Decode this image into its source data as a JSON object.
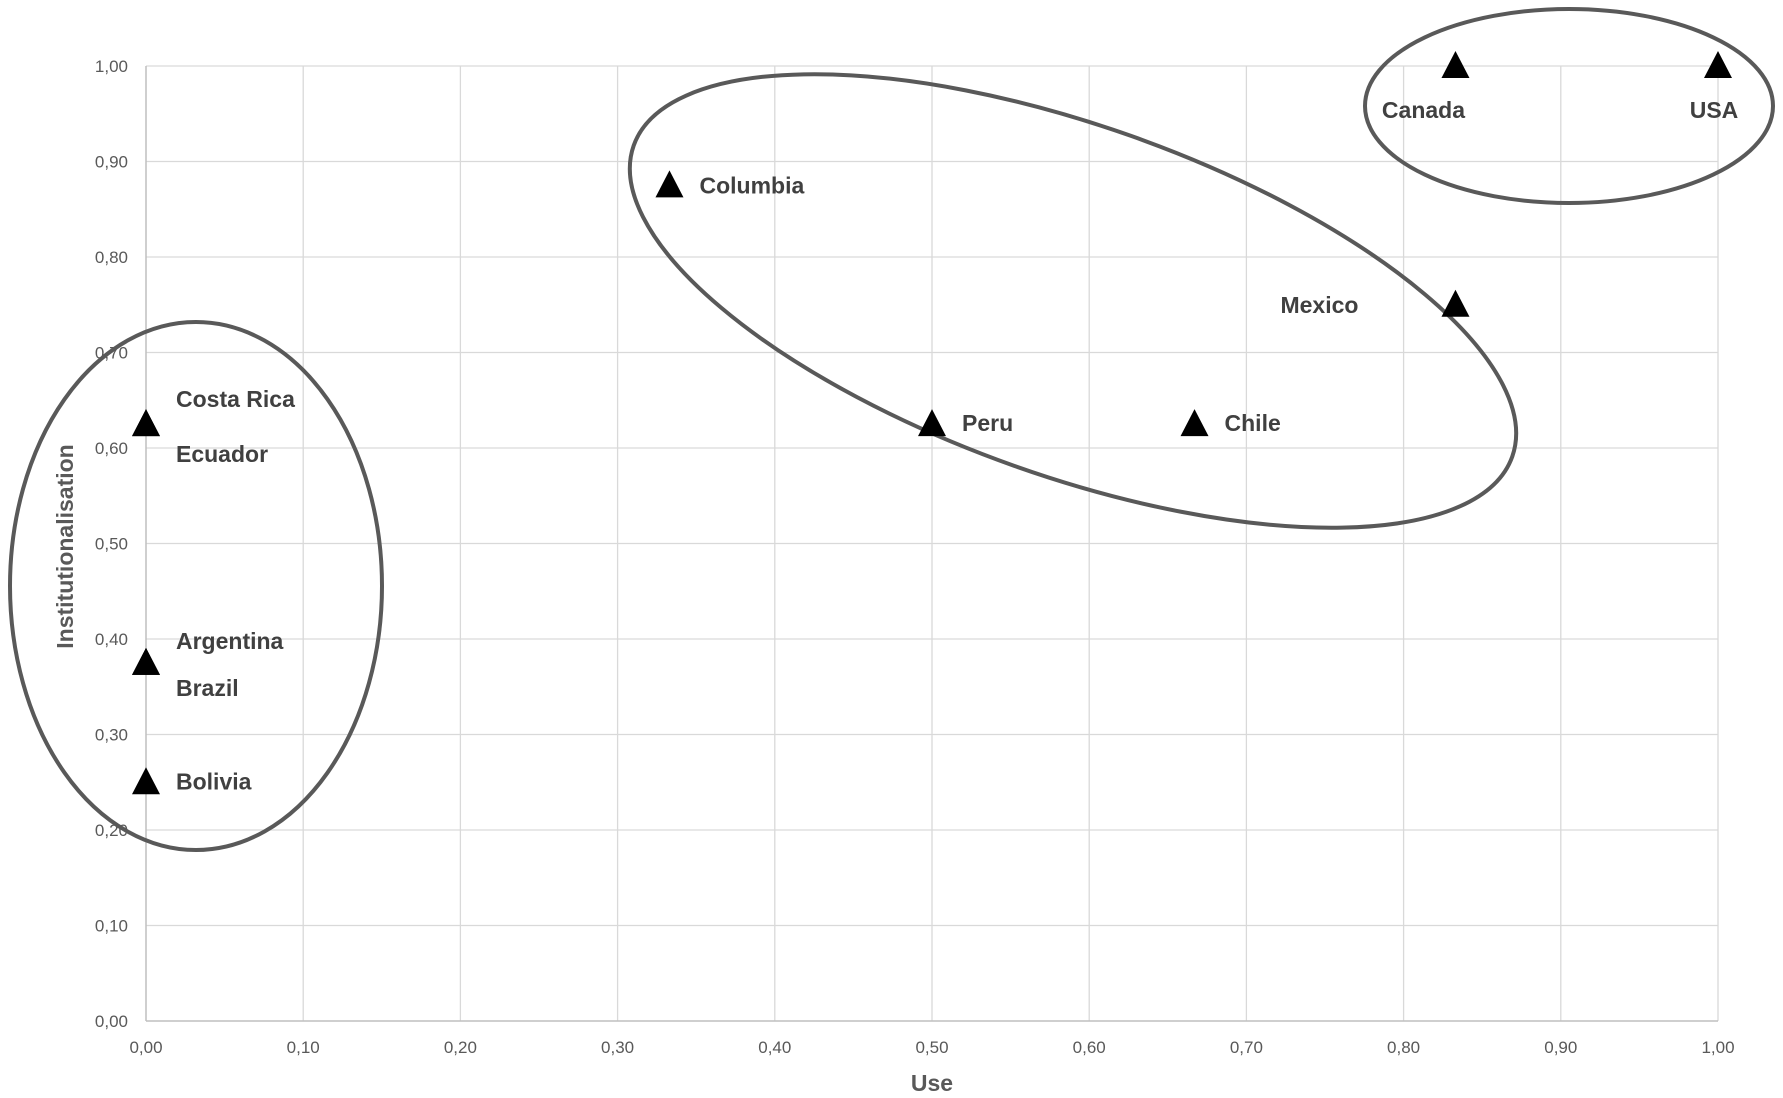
{
  "chart_data": {
    "type": "scatter",
    "xlabel": "Use",
    "ylabel": "Institutionalisation",
    "xlim": [
      0,
      1
    ],
    "ylim": [
      0,
      1
    ],
    "xticks": [
      "0,00",
      "0,10",
      "0,20",
      "0,30",
      "0,40",
      "0,50",
      "0,60",
      "0,70",
      "0,80",
      "0,90",
      "1,00"
    ],
    "yticks": [
      "0,00",
      "0,10",
      "0,20",
      "0,30",
      "0,40",
      "0,50",
      "0,60",
      "0,70",
      "0,80",
      "0,90",
      "1,00"
    ],
    "grid": true,
    "marker": "triangle",
    "points": [
      {
        "label": "Costa Rica",
        "x": 0.0,
        "y": 0.625
      },
      {
        "label": "Ecuador",
        "x": 0.0,
        "y": 0.625
      },
      {
        "label": "Argentina",
        "x": 0.0,
        "y": 0.375
      },
      {
        "label": "Brazil",
        "x": 0.0,
        "y": 0.375
      },
      {
        "label": "Bolivia",
        "x": 0.0,
        "y": 0.25
      },
      {
        "label": "Columbia",
        "x": 0.333,
        "y": 0.875
      },
      {
        "label": "Peru",
        "x": 0.5,
        "y": 0.625
      },
      {
        "label": "Chile",
        "x": 0.667,
        "y": 0.625
      },
      {
        "label": "Mexico",
        "x": 0.833,
        "y": 0.75
      },
      {
        "label": "Canada",
        "x": 0.833,
        "y": 1.0
      },
      {
        "label": "USA",
        "x": 1.0,
        "y": 1.0
      }
    ],
    "clusters": [
      {
        "members": [
          "Costa Rica",
          "Ecuador",
          "Argentina",
          "Brazil",
          "Bolivia"
        ]
      },
      {
        "members": [
          "Columbia",
          "Peru",
          "Chile",
          "Mexico"
        ]
      },
      {
        "members": [
          "Canada",
          "USA"
        ]
      }
    ]
  }
}
